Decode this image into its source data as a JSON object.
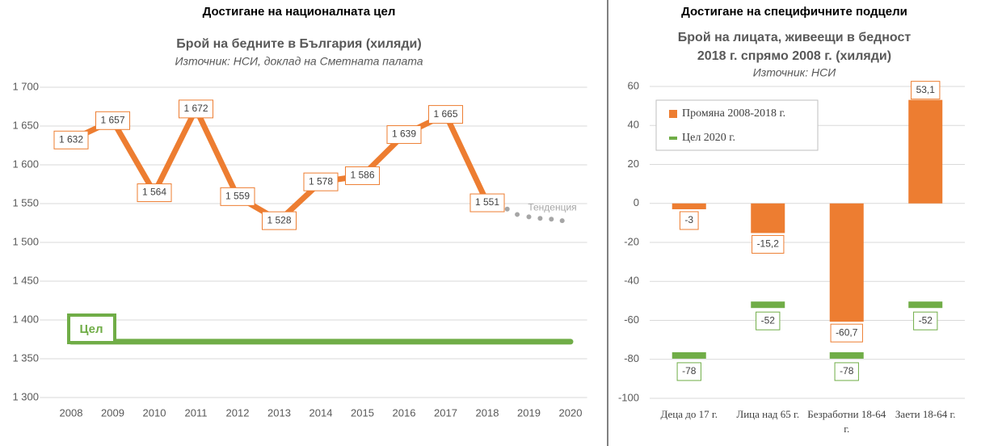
{
  "chart_data": [
    {
      "type": "line",
      "header": "Достигане на националната цел",
      "title": "Брой на бедните в България (хиляди)",
      "subtitle": "Източник: НСИ, доклад на Сметната палата",
      "x": [
        2008,
        2009,
        2010,
        2011,
        2012,
        2013,
        2014,
        2015,
        2016,
        2017,
        2018,
        2019,
        2020
      ],
      "xticks": [
        2008,
        2009,
        2010,
        2011,
        2012,
        2013,
        2014,
        2015,
        2016,
        2017,
        2018,
        2019,
        2020
      ],
      "xlim": [
        2007.5,
        2020.4
      ],
      "ylim": [
        1300,
        1700
      ],
      "yticks": [
        {
          "value": 1300,
          "label": "1 300"
        },
        {
          "value": 1350,
          "label": "1 350"
        },
        {
          "value": 1400,
          "label": "1 400"
        },
        {
          "value": 1450,
          "label": "1 450"
        },
        {
          "value": 1500,
          "label": "1 500"
        },
        {
          "value": 1550,
          "label": "1 550"
        },
        {
          "value": 1600,
          "label": "1 600"
        },
        {
          "value": 1650,
          "label": "1 650"
        },
        {
          "value": 1700,
          "label": "1 700"
        }
      ],
      "grid": true,
      "series": [
        {
          "color": "#ed7d31",
          "values": [
            1632,
            1657,
            1564,
            1672,
            1559,
            1528,
            1578,
            1586,
            1639,
            1665,
            1551,
            null,
            null
          ],
          "value_labels": [
            "1 632",
            "1 657",
            "1 564",
            "1 672",
            "1 559",
            "1 528",
            "1 578",
            "1 586",
            "1 639",
            "1 665",
            "1 551",
            null,
            null
          ]
        },
        {
          "name": "Тенденция",
          "color": "#a6a6a6",
          "style": "dotted",
          "x": [
            2018.48,
            2018.72,
            2019,
            2019.27,
            2019.54,
            2019.8
          ],
          "values": [
            1543,
            1536,
            1533,
            1531,
            1530,
            1528
          ]
        }
      ],
      "target": {
        "name": "Цел",
        "value": 1372,
        "color": "#70ad47"
      }
    },
    {
      "type": "bar",
      "header": "Достигане на специфичните подцели",
      "title": [
        "Брой на лицата, живеещи в бедност",
        "2018 г. спрямо 2008 г. (хиляди)"
      ],
      "subtitle": "Източник: НСИ",
      "categories": [
        "Деца до 17 г.",
        "Лица над 65 г.",
        "Безработни 18-64 г.",
        "Заети 18-64 г."
      ],
      "ylim": [
        -100,
        60
      ],
      "yticks": [
        -100,
        -80,
        -60,
        -40,
        -20,
        0,
        20,
        40,
        60
      ],
      "grid": true,
      "legend": "top-left",
      "series": [
        {
          "name": "Промяна 2008-2018 г.",
          "color": "#ed7d31",
          "values": [
            -3,
            -15.2,
            -60.7,
            53.1
          ],
          "value_labels": [
            "-3",
            "-15,2",
            "-60,7",
            "53,1"
          ]
        },
        {
          "name": "Цел 2020 г.",
          "color": "#70ad47",
          "style": "marker",
          "values": [
            -78,
            -52,
            -78,
            -52
          ]
        }
      ]
    }
  ]
}
